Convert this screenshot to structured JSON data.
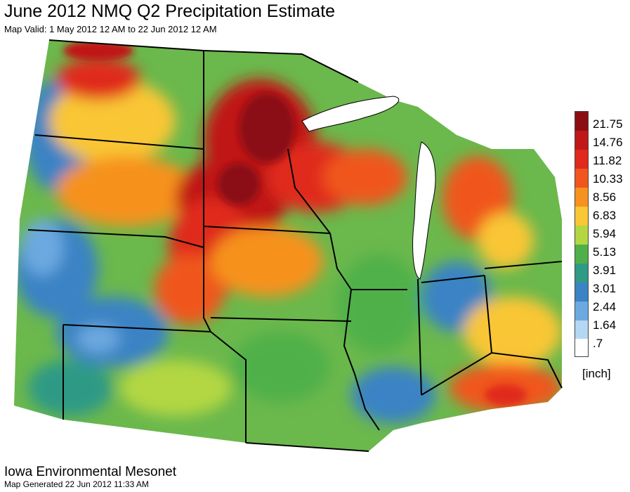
{
  "title": "June 2012 NMQ Q2 Precipitation Estimate",
  "subtitle": "Map Valid: 1 May 2012 12 AM to 22 Jun 2012 12 AM",
  "legend": {
    "unit": "[inch]",
    "levels": [
      {
        "label": "21.75",
        "color": "#8b0f12"
      },
      {
        "label": "14.76",
        "color": "#c01818"
      },
      {
        "label": "11.82",
        "color": "#e02a1c"
      },
      {
        "label": "10.33",
        "color": "#f0561d"
      },
      {
        "label": "8.56",
        "color": "#f6921f"
      },
      {
        "label": "6.83",
        "color": "#f9c634"
      },
      {
        "label": "5.94",
        "color": "#b3d742"
      },
      {
        "label": "5.13",
        "color": "#4fb04a"
      },
      {
        "label": "3.91",
        "color": "#2f9a86"
      },
      {
        "label": "3.01",
        "color": "#3a83c4"
      },
      {
        "label": "2.44",
        "color": "#6ca9e0"
      },
      {
        "label": "1.64",
        "color": "#b4d8f4"
      },
      {
        "label": ".7",
        "color": "#ffffff"
      }
    ]
  },
  "footer": {
    "organization": "Iowa Environmental Mesonet",
    "generated": "Map Generated 22 Jun 2012 11:33 AM"
  }
}
